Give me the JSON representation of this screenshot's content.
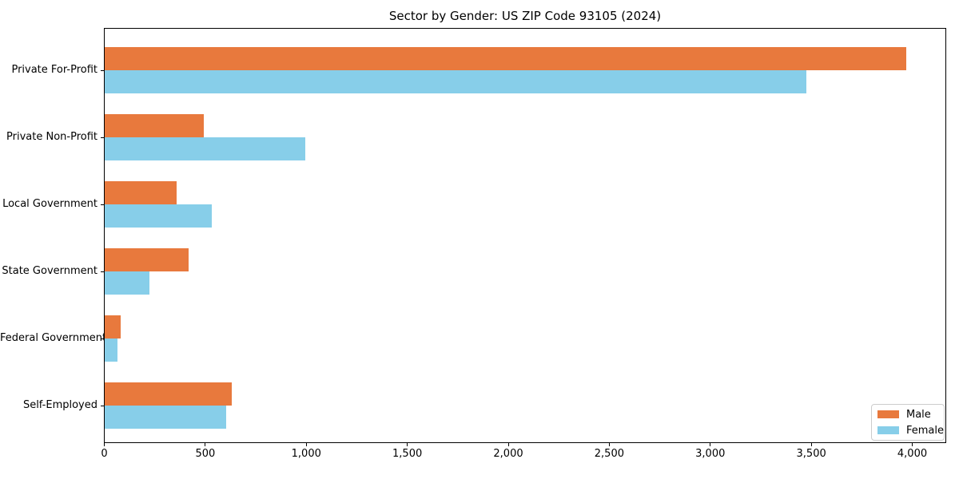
{
  "title": "Sector by Gender: US ZIP Code 93105 (2024)",
  "chart_data": {
    "type": "bar",
    "orientation": "horizontal",
    "title": "Sector by Gender: US ZIP Code 93105 (2024)",
    "categories": [
      "Private For-Profit",
      "Private Non-Profit",
      "Local Government",
      "State Government",
      "Federal Government",
      "Self-Employed"
    ],
    "series": [
      {
        "name": "Male",
        "color": "#e8793d",
        "values": [
          3970,
          490,
          355,
          415,
          80,
          630
        ]
      },
      {
        "name": "Female",
        "color": "#87cee9",
        "values": [
          3475,
          995,
          530,
          220,
          65,
          600
        ]
      }
    ],
    "xlim": [
      0,
      4170
    ],
    "xticks": [
      0,
      500,
      1000,
      1500,
      2000,
      2500,
      3000,
      3500,
      4000
    ],
    "xtick_labels": [
      "0",
      "500",
      "1,000",
      "1,500",
      "2,000",
      "2,500",
      "3,000",
      "3,500",
      "4,000"
    ],
    "xlabel": "",
    "ylabel": "",
    "grid": false,
    "legend_position": "lower right",
    "legend_border_color": "#cccccc"
  }
}
